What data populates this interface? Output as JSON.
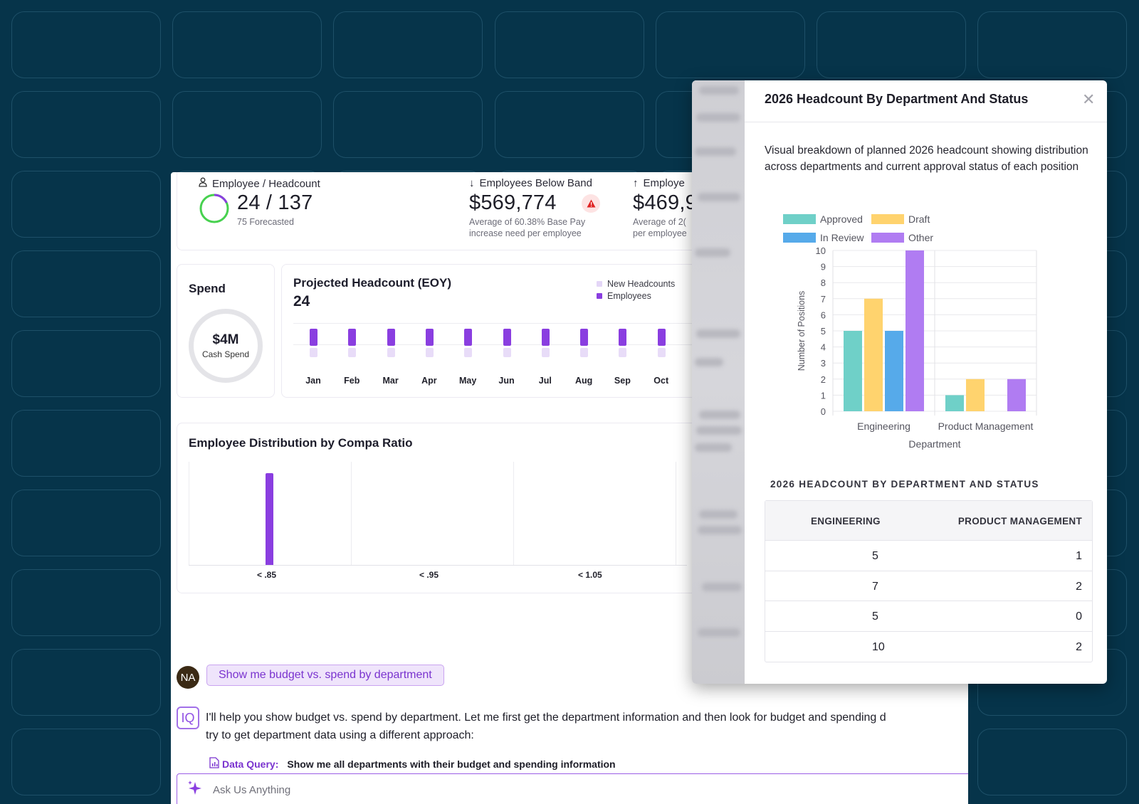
{
  "kpis": {
    "headcount": {
      "label": "Employee / Headcount",
      "value": "24 / 137",
      "sub": "75 Forecasted",
      "progress_fraction": 0.18
    },
    "below_band": {
      "label": "Employees Below Band",
      "value": "$569,774",
      "sub_line1": "Average of 60.38% Base Pay",
      "sub_line2": "increase need per employee"
    },
    "above_band": {
      "label": "Employe",
      "value": "$469,9",
      "sub_line1": "Average of 2(",
      "sub_line2": "per employee"
    }
  },
  "spend": {
    "title": "Spend",
    "value": "$4M",
    "sub": "Cash Spend"
  },
  "projected": {
    "title": "Projected Headcount (EOY)",
    "value": "24",
    "legend": [
      "New Headcounts",
      "Employees"
    ],
    "months": [
      "Jan",
      "Feb",
      "Mar",
      "Apr",
      "May",
      "Jun",
      "Jul",
      "Aug",
      "Sep",
      "Oct"
    ]
  },
  "compa": {
    "title": "Employee Distribution by Compa Ratio",
    "ticks": [
      "< .85",
      "< .95",
      "< 1.05"
    ]
  },
  "chat": {
    "avatar_initials": "NA",
    "user_message": "Show me budget vs. spend by department",
    "assistant_logo": "IQ",
    "assistant_response": "I'll help you show budget vs. spend by department. Let me first get the department information and then look for budget and spending d\ntry to get department data using a different approach:",
    "data_query_label": "Data Query:",
    "data_query_text": "Show me all departments with their budget and spending information",
    "input_placeholder": "Ask Us Anything"
  },
  "modal": {
    "title": "2026 Headcount By Department And Status",
    "description": "Visual breakdown of planned 2026 headcount showing distribution across departments and current approval status of each position",
    "table_caption": "2026 HEADCOUNT BY DEPARTMENT AND STATUS",
    "table_headers": [
      "ENGINEERING",
      "PRODUCT MANAGEMENT"
    ],
    "table_rows": [
      [
        "5",
        "1"
      ],
      [
        "7",
        "2"
      ],
      [
        "5",
        "0"
      ],
      [
        "10",
        "2"
      ]
    ]
  },
  "colors": {
    "accent": "#8a3ee0",
    "approved": "#6fd0c8",
    "draft": "#ffd36e",
    "in_review": "#56aaea",
    "other": "#b07cf2",
    "background": "#06344a"
  },
  "chart_data": [
    {
      "type": "bar",
      "title": "",
      "xlabel": "Department",
      "ylabel": "Number of Positions",
      "categories": [
        "Engineering",
        "Product Management"
      ],
      "series": [
        {
          "name": "Approved",
          "values": [
            5,
            1
          ]
        },
        {
          "name": "Draft",
          "values": [
            7,
            2
          ]
        },
        {
          "name": "In Review",
          "values": [
            5,
            0
          ]
        },
        {
          "name": "Other",
          "values": [
            10,
            2
          ]
        }
      ],
      "ylim": [
        0,
        10
      ],
      "yticks": [
        0,
        1,
        2,
        3,
        4,
        5,
        6,
        7,
        8,
        9,
        10
      ],
      "grid": true,
      "legend": "top"
    }
  ]
}
